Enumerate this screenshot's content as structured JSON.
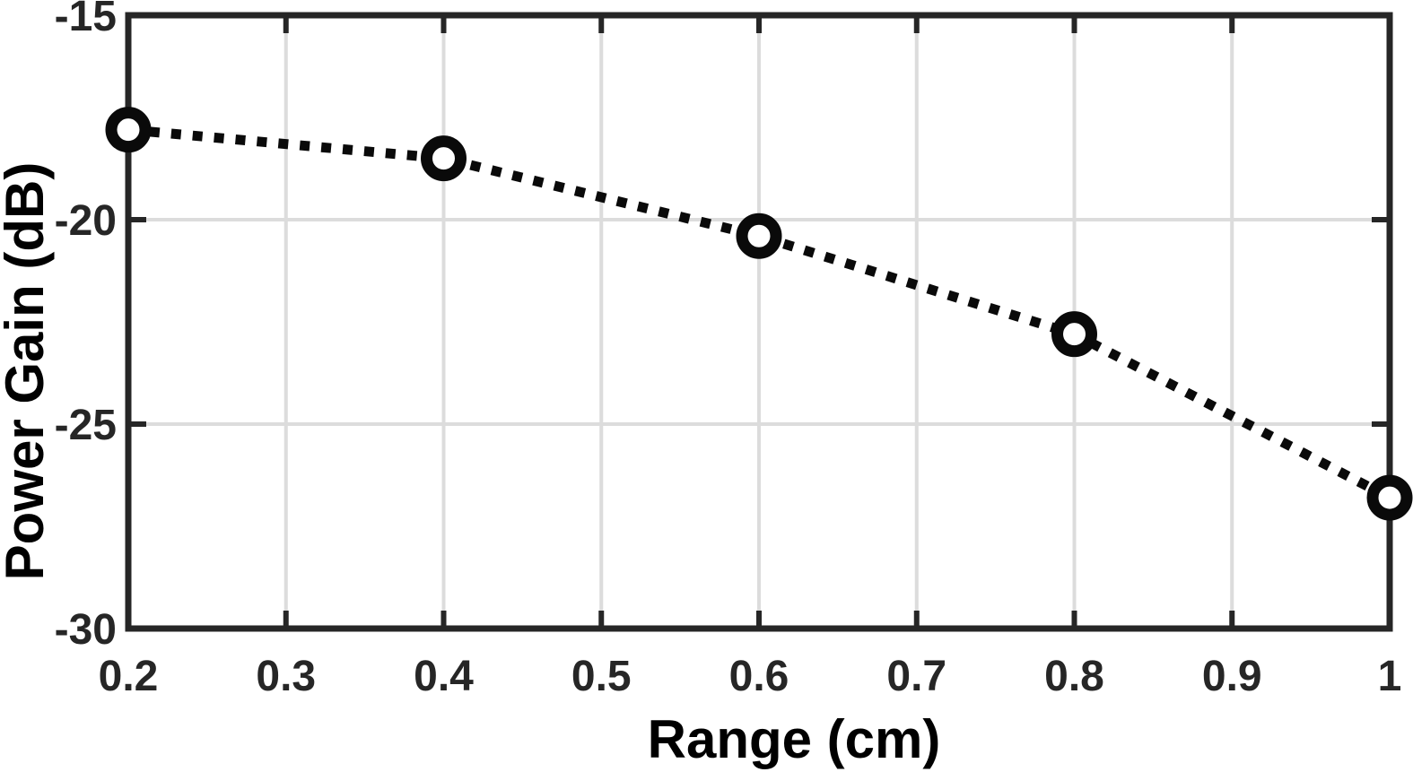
{
  "figure": {
    "background": "#ffffff",
    "frame_color": "#262626",
    "grid_color": "#dcdcdc",
    "tick_color": "#262626",
    "tick_label_color": "#262626",
    "axis_label_color": "#000000",
    "data_line_color": "#0a0a0a",
    "marker_edge_color": "#0a0a0a",
    "marker_fill": "#ffffff"
  },
  "chart_data": {
    "type": "line",
    "title": "",
    "xlabel": "Range (cm)",
    "ylabel": "Power Gain (dB)",
    "xlim": [
      0.2,
      1
    ],
    "ylim": [
      -30,
      -15
    ],
    "xticks": [
      0.2,
      0.3,
      0.4,
      0.5,
      0.6,
      0.7,
      0.8,
      0.9,
      1
    ],
    "xtick_labels": [
      "0.2",
      "0.3",
      "0.4",
      "0.5",
      "0.6",
      "0.7",
      "0.8",
      "0.9",
      "1"
    ],
    "yticks": [
      -15,
      -20,
      -25,
      -30
    ],
    "ytick_labels": [
      "-15",
      "-20",
      "-25",
      "-30"
    ],
    "grid": true,
    "legend": null,
    "series": [
      {
        "name": "Power Gain",
        "x": [
          0.2,
          0.4,
          0.6,
          0.8,
          1.0
        ],
        "y": [
          -17.8,
          -18.5,
          -20.4,
          -22.8,
          -26.8
        ],
        "line_style": "dotted",
        "marker": "open-circle"
      }
    ]
  }
}
